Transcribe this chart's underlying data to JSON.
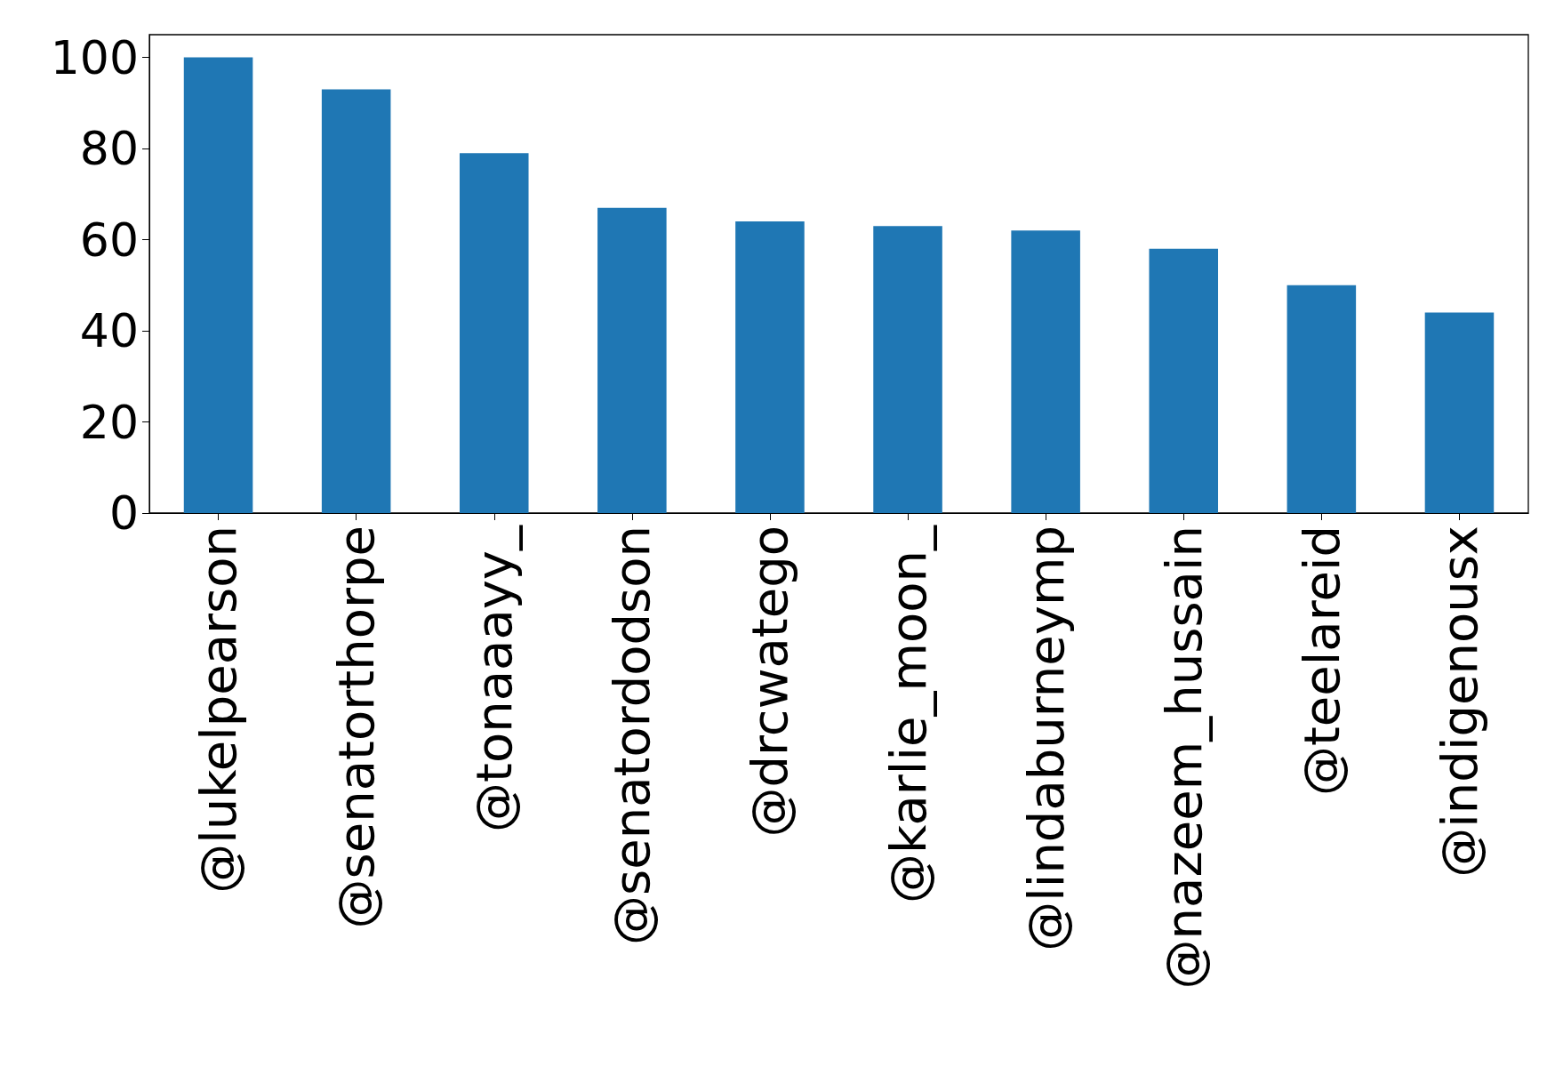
{
  "chart_data": {
    "type": "bar",
    "categories": [
      "@lukelpearson",
      "@senatorthorpe",
      "@tonaaayy_",
      "@senatordodson",
      "@drcwatego",
      "@karlie_moon_",
      "@lindaburneymp",
      "@nazeem_hussain",
      "@teelareid",
      "@indigenousx"
    ],
    "values": [
      100,
      93,
      79,
      67,
      64,
      63,
      62,
      58,
      50,
      44
    ],
    "color": "#1f77b4",
    "ylim": [
      0,
      105
    ],
    "yticks": [
      0,
      20,
      40,
      60,
      80,
      100
    ],
    "grid": false
  }
}
